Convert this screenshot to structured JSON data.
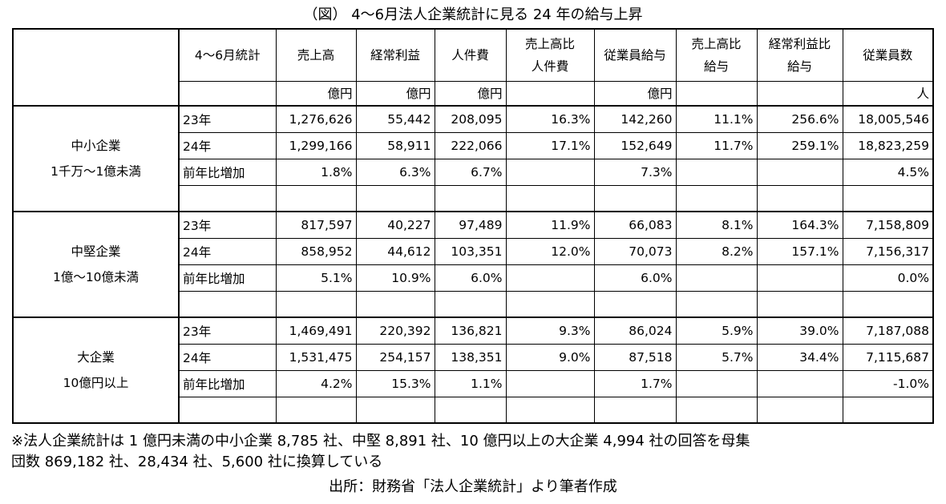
{
  "title": "（図） 4～6月法人企業統計に見る 24 年の給与上昇",
  "table": {
    "header": [
      null,
      [
        "4～6月統計"
      ],
      [
        "売上高"
      ],
      [
        "経常利益"
      ],
      [
        "人件費"
      ],
      [
        "売上高比",
        "人件費"
      ],
      [
        "従業員給与"
      ],
      [
        "売上高比",
        "給与"
      ],
      [
        "経常利益比",
        "給与"
      ],
      [
        "従業員数"
      ]
    ],
    "units": [
      null,
      null,
      "億円",
      "億円",
      "億円",
      null,
      "億円",
      null,
      null,
      "人"
    ],
    "groups": [
      {
        "label": [
          "中小企業",
          "1千万～1億未満"
        ],
        "rows": [
          {
            "label": "23年",
            "cells": [
              "1,276,626",
              "55,442",
              "208,095",
              "16.3%",
              "142,260",
              "11.1%",
              "256.6%",
              "18,005,546"
            ]
          },
          {
            "label": "24年",
            "cells": [
              "1,299,166",
              "58,911",
              "222,066",
              "17.1%",
              "152,649",
              "11.7%",
              "259.1%",
              "18,823,259"
            ]
          },
          {
            "label": "前年比増加",
            "cells": [
              "1.8%",
              "6.3%",
              "6.7%",
              null,
              "7.3%",
              null,
              null,
              "4.5%"
            ]
          }
        ]
      },
      {
        "label": [
          "中堅企業",
          "1億～10億未満"
        ],
        "rows": [
          {
            "label": "23年",
            "cells": [
              "817,597",
              "40,227",
              "97,489",
              "11.9%",
              "66,083",
              "8.1%",
              "164.3%",
              "7,158,809"
            ]
          },
          {
            "label": "24年",
            "cells": [
              "858,952",
              "44,612",
              "103,351",
              "12.0%",
              "70,073",
              "8.2%",
              "157.1%",
              "7,156,317"
            ]
          },
          {
            "label": "前年比増加",
            "cells": [
              "5.1%",
              "10.9%",
              "6.0%",
              null,
              "6.0%",
              null,
              null,
              "0.0%"
            ]
          }
        ]
      },
      {
        "label": [
          "大企業",
          "10億円以上"
        ],
        "rows": [
          {
            "label": "23年",
            "cells": [
              "1,469,491",
              "220,392",
              "136,821",
              "9.3%",
              "86,024",
              "5.9%",
              "39.0%",
              "7,187,088"
            ]
          },
          {
            "label": "24年",
            "cells": [
              "1,531,475",
              "254,157",
              "138,351",
              "9.0%",
              "87,518",
              "5.7%",
              "34.4%",
              "7,115,687"
            ]
          },
          {
            "label": "前年比増加",
            "cells": [
              "4.2%",
              "15.3%",
              "1.1%",
              null,
              "1.7%",
              null,
              null,
              "-1.0%"
            ]
          }
        ]
      }
    ]
  },
  "notes": [
    "※法人企業統計は 1 億円未満の中小企業 8,785 社、中堅 8,891 社、10 億円以上の大企業 4,994 社の回答を母集",
    "団数 869,182 社、28,434 社、5,600 社に換算している"
  ],
  "source": "出所：財務省「法人企業統計」より筆者作成"
}
